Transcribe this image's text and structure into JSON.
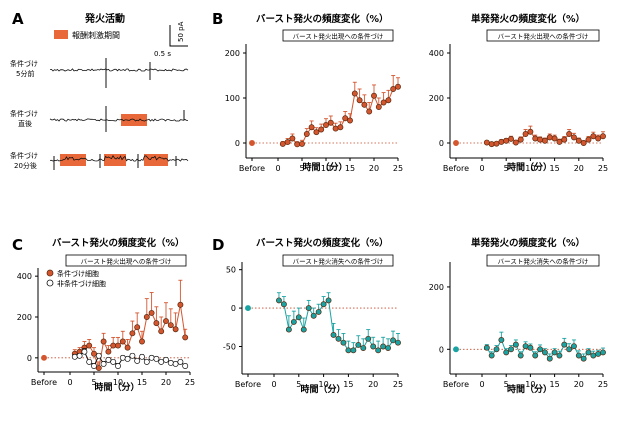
{
  "colors": {
    "orange": "#d4562f",
    "orange_fill": "#e06d3d",
    "teal": "#1aa3a3",
    "stim": "#e9683a",
    "trace": "#111111"
  },
  "panel_a": {
    "letter": "A",
    "title": "発火活動",
    "legend": "報酬刺激期間",
    "scale_time": "0.5 s",
    "scale_amp": "50 pA",
    "rows": [
      {
        "label_1": "条件づけ",
        "label_2": "5分前"
      },
      {
        "label_1": "条件づけ",
        "label_2": "直後"
      },
      {
        "label_1": "条件づけ",
        "label_2": "20分後"
      }
    ]
  },
  "letters": {
    "b": "B",
    "c": "C",
    "d": "D"
  },
  "chart_data": [
    {
      "id": "B-left",
      "type": "line",
      "title": "バースト発火の頻度変化（%）",
      "box_label": "バースト発火出現への条件づけ",
      "xlabel": "時間（分）",
      "xticks": [
        "Before",
        "0",
        "5",
        "10",
        "15",
        "20",
        "25"
      ],
      "yticks": [
        "0",
        "100",
        "200"
      ],
      "ylim": [
        -20,
        220
      ],
      "before": 0,
      "series": [
        {
          "color": "orange",
          "x": [
            1,
            2,
            3,
            4,
            5,
            6,
            7,
            8,
            9,
            10,
            11,
            12,
            13,
            14,
            15,
            16,
            17,
            18,
            19,
            20,
            21,
            22,
            23,
            24,
            25
          ],
          "y": [
            -2,
            2,
            10,
            -3,
            -2,
            20,
            35,
            24,
            30,
            40,
            45,
            32,
            35,
            55,
            50,
            110,
            95,
            85,
            70,
            105,
            80,
            90,
            95,
            120,
            125
          ],
          "err": [
            5,
            8,
            10,
            6,
            8,
            12,
            14,
            10,
            12,
            14,
            15,
            12,
            12,
            15,
            15,
            25,
            25,
            22,
            20,
            24,
            20,
            22,
            22,
            30,
            20
          ]
        }
      ]
    },
    {
      "id": "B-right",
      "type": "line",
      "title": "単発発火の頻度変化（%）",
      "box_label": "バースト発火出現への条件づけ",
      "xlabel": "時間（分）",
      "xticks": [
        "Before",
        "0",
        "5",
        "10",
        "15",
        "20",
        "25"
      ],
      "yticks": [
        "0",
        "200",
        "400"
      ],
      "ylim": [
        -40,
        440
      ],
      "before": 0,
      "series": [
        {
          "color": "orange",
          "x": [
            1,
            2,
            3,
            4,
            5,
            6,
            7,
            8,
            9,
            10,
            11,
            12,
            13,
            14,
            15,
            16,
            17,
            18,
            19,
            20,
            21,
            22,
            23,
            24,
            25
          ],
          "y": [
            2,
            -5,
            -3,
            5,
            10,
            18,
            2,
            15,
            40,
            50,
            20,
            15,
            10,
            25,
            20,
            5,
            15,
            40,
            25,
            10,
            0,
            15,
            30,
            20,
            30
          ],
          "err": [
            8,
            8,
            8,
            10,
            10,
            12,
            10,
            12,
            20,
            25,
            15,
            12,
            12,
            15,
            15,
            12,
            14,
            20,
            18,
            12,
            10,
            14,
            18,
            15,
            20
          ]
        }
      ]
    },
    {
      "id": "C",
      "type": "line",
      "title": "バースト発火の頻度変化（%）",
      "box_label": "バースト発火出現への条件づけ",
      "xlabel": "時間（分）",
      "xticks": [
        "Before",
        "0",
        "5",
        "10",
        "15",
        "20",
        "25"
      ],
      "yticks": [
        "0",
        "200",
        "400"
      ],
      "ylim": [
        -40,
        440
      ],
      "legend": [
        {
          "name": "条件づけ細胞",
          "color": "orange",
          "filled": true
        },
        {
          "name": "非条件づけ細胞",
          "color": "black",
          "filled": false
        }
      ],
      "before": 0,
      "series": [
        {
          "name": "条件づけ細胞",
          "color": "orange",
          "x": [
            1,
            2,
            3,
            4,
            5,
            6,
            7,
            8,
            9,
            10,
            11,
            12,
            13,
            14,
            15,
            16,
            17,
            18,
            19,
            20,
            21,
            22,
            23,
            24
          ],
          "y": [
            20,
            30,
            50,
            60,
            20,
            -50,
            80,
            30,
            60,
            60,
            80,
            50,
            120,
            150,
            80,
            200,
            220,
            170,
            130,
            180,
            160,
            140,
            260,
            100
          ],
          "err": [
            20,
            20,
            30,
            30,
            30,
            30,
            40,
            30,
            40,
            40,
            50,
            40,
            60,
            70,
            50,
            90,
            100,
            80,
            70,
            90,
            80,
            80,
            120,
            40
          ]
        },
        {
          "name": "非条件づけ細胞",
          "color": "black",
          "x": [
            1,
            2,
            3,
            4,
            5,
            6,
            7,
            8,
            9,
            10,
            11,
            12,
            13,
            14,
            15,
            16,
            17,
            18,
            19,
            20,
            21,
            22,
            23,
            24
          ],
          "y": [
            5,
            10,
            30,
            -20,
            -40,
            10,
            -30,
            -10,
            -20,
            -40,
            0,
            -5,
            10,
            -15,
            5,
            -20,
            0,
            -5,
            -20,
            -10,
            -25,
            -30,
            -20,
            -40
          ],
          "err": [
            10,
            10,
            15,
            10,
            12,
            10,
            12,
            10,
            10,
            12,
            10,
            10,
            10,
            10,
            10,
            10,
            10,
            10,
            10,
            10,
            10,
            10,
            10,
            10
          ]
        }
      ]
    },
    {
      "id": "D-left",
      "type": "line",
      "title": "バースト発火の頻度変化（%）",
      "box_label": "バースト発火消失への条件づけ",
      "xlabel": "時間（分）",
      "xticks": [
        "Before",
        "0",
        "5",
        "10",
        "15",
        "20",
        "25"
      ],
      "yticks": [
        "50",
        "0",
        "-50"
      ],
      "ylim": [
        -78,
        60
      ],
      "before": 0,
      "series": [
        {
          "color": "teal",
          "x": [
            1,
            2,
            3,
            4,
            5,
            6,
            7,
            8,
            9,
            10,
            11,
            12,
            13,
            14,
            15,
            16,
            17,
            18,
            19,
            20,
            21,
            22,
            23,
            24,
            25
          ],
          "y": [
            10,
            5,
            -28,
            -18,
            -12,
            -28,
            0,
            -10,
            -5,
            5,
            10,
            -35,
            -40,
            -45,
            -55,
            -55,
            -48,
            -52,
            -40,
            -50,
            -55,
            -50,
            -52,
            -42,
            -45
          ],
          "err": [
            10,
            10,
            18,
            14,
            12,
            15,
            10,
            10,
            10,
            10,
            10,
            15,
            12,
            12,
            12,
            10,
            12,
            12,
            12,
            12,
            12,
            12,
            12,
            12,
            12
          ]
        }
      ]
    },
    {
      "id": "D-right",
      "type": "line",
      "title": "単発発火の頻度変化（%）",
      "box_label": "バースト発火消失への条件づけ",
      "xlabel": "時間（分）",
      "xticks": [
        "Before",
        "0",
        "5",
        "10",
        "15",
        "20",
        "25"
      ],
      "yticks": [
        "0",
        "200"
      ],
      "ylim": [
        -60,
        280
      ],
      "before": 0,
      "series": [
        {
          "color": "teal",
          "x": [
            1,
            2,
            3,
            4,
            5,
            6,
            7,
            8,
            9,
            10,
            11,
            12,
            13,
            14,
            15,
            16,
            17,
            18,
            19,
            20,
            21,
            22,
            23,
            24,
            25
          ],
          "y": [
            5,
            -20,
            0,
            30,
            -10,
            0,
            15,
            -20,
            10,
            5,
            -20,
            0,
            -10,
            -30,
            -10,
            -20,
            15,
            0,
            10,
            -20,
            -30,
            -10,
            -20,
            -15,
            -10
          ],
          "err": [
            10,
            12,
            12,
            25,
            12,
            12,
            15,
            12,
            14,
            12,
            12,
            14,
            12,
            15,
            12,
            14,
            20,
            18,
            20,
            15,
            15,
            12,
            14,
            12,
            14
          ]
        }
      ]
    }
  ]
}
